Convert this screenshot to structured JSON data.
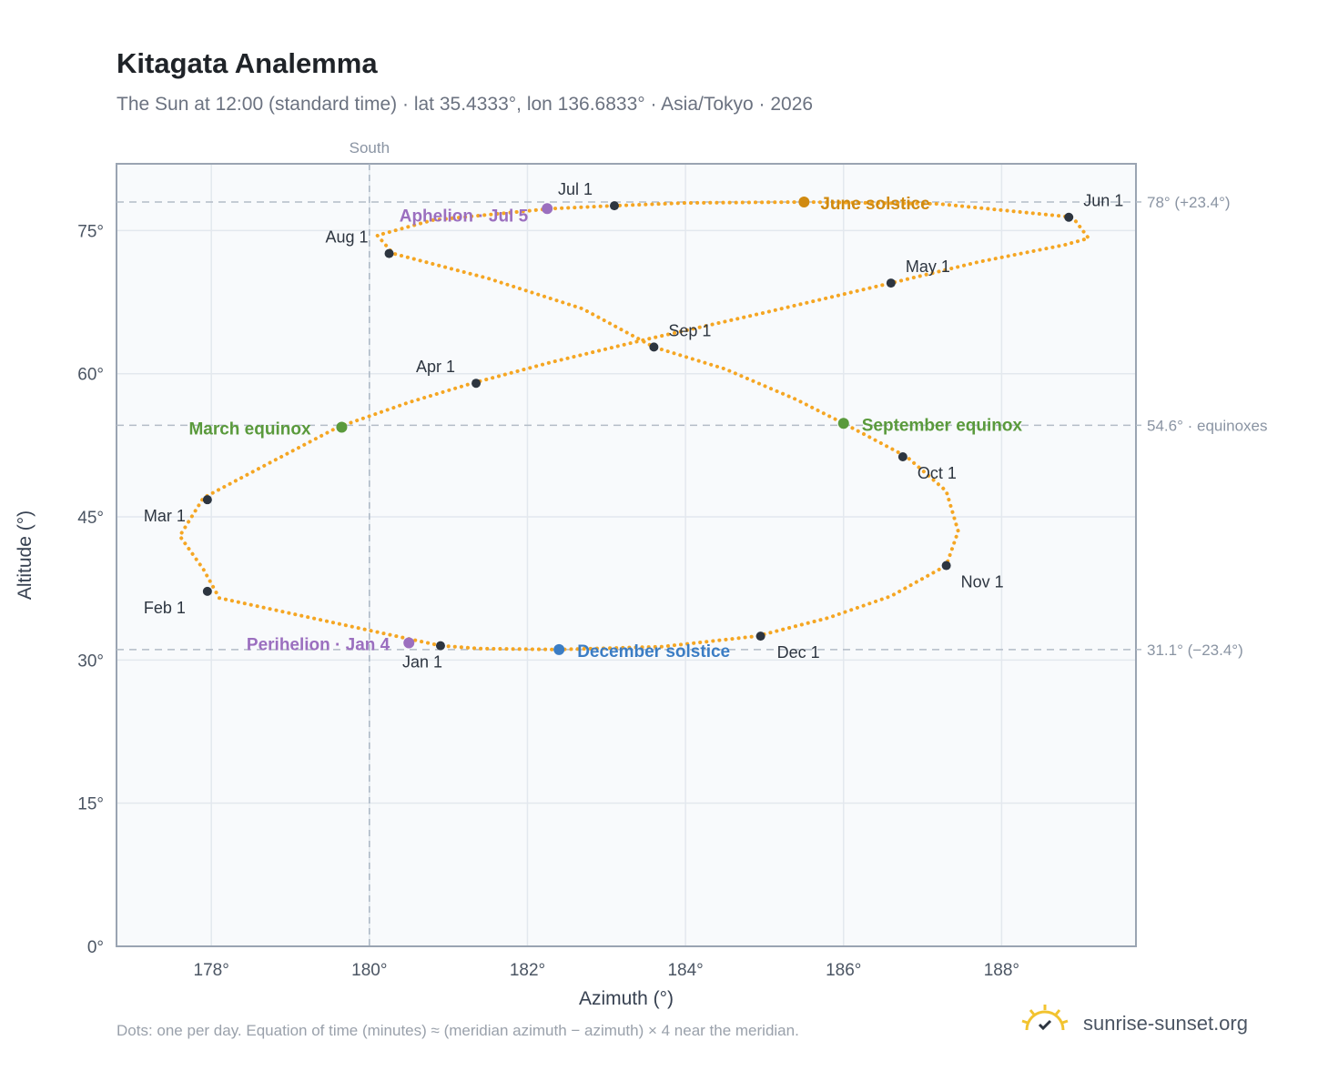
{
  "title": "Kitagata Analemma",
  "subtitle": "The Sun at 12:00 (standard time) · lat 35.4333°, lon 136.6833° · Asia/Tokyo · 2026",
  "footnote": "Dots: one per day. Equation of time (minutes) ≈ (meridian azimuth − azimuth) × 4 near the meridian.",
  "brand": {
    "name": "sunrise-sunset.org",
    "icon": "sun-logo-icon"
  },
  "colors": {
    "path": "#f5a623",
    "month": "#2d3540",
    "equinox": "#5a9a3c",
    "june_solstice": "#d08a10",
    "december_solstice": "#3b7dc4",
    "apsis": "#9b6fbf",
    "grid": "#e3e8ee",
    "plot_bg": "#f8fafc"
  },
  "chart_data": {
    "type": "scatter",
    "xlabel": "Azimuth (°)",
    "ylabel": "Altitude (°)",
    "xlim": [
      176.8,
      189.7
    ],
    "ylim": [
      0,
      82
    ],
    "x_ticks": [
      178,
      180,
      182,
      184,
      186,
      188
    ],
    "y_ticks": [
      0,
      15,
      30,
      45,
      60,
      75
    ],
    "x_tick_labels": [
      "178°",
      "180°",
      "182°",
      "184°",
      "186°",
      "188°"
    ],
    "y_tick_labels": [
      "0°",
      "15°",
      "30°",
      "45°",
      "60°",
      "75°"
    ],
    "grid": true,
    "south_line": {
      "x": 180,
      "label": "South"
    },
    "reference_lines": [
      {
        "y": 78.0,
        "label": "78° (+23.4°)"
      },
      {
        "y": 54.6,
        "label": "54.6° · equinoxes"
      },
      {
        "y": 31.1,
        "label": "31.1° (−23.4°)"
      }
    ],
    "series": [
      {
        "name": "daily",
        "points": [
          [
            180.9,
            31.5
          ],
          [
            178.1,
            36.5
          ],
          [
            177.9,
            39.5
          ],
          [
            177.6,
            43.0
          ],
          [
            177.9,
            47.0
          ],
          [
            178.7,
            50.5
          ],
          [
            179.6,
            54.4
          ],
          [
            180.5,
            57.0
          ],
          [
            181.3,
            59.0
          ],
          [
            182.3,
            61.2
          ],
          [
            183.5,
            63.6
          ],
          [
            185.0,
            66.4
          ],
          [
            186.6,
            69.5
          ],
          [
            187.7,
            71.7
          ],
          [
            188.8,
            73.5
          ],
          [
            189.1,
            74.2
          ],
          [
            188.9,
            76.4
          ],
          [
            187.2,
            77.8
          ],
          [
            185.5,
            78.0
          ],
          [
            184.0,
            77.9
          ],
          [
            183.1,
            77.6
          ],
          [
            182.3,
            77.3
          ],
          [
            180.8,
            76.1
          ],
          [
            180.1,
            74.5
          ],
          [
            180.3,
            72.6
          ],
          [
            181.5,
            70.0
          ],
          [
            182.7,
            66.8
          ],
          [
            183.6,
            62.8
          ],
          [
            184.5,
            60.5
          ],
          [
            185.4,
            57.3
          ],
          [
            186.0,
            54.8
          ],
          [
            186.8,
            51.3
          ],
          [
            187.3,
            47.7
          ],
          [
            187.45,
            43.5
          ],
          [
            187.3,
            39.9
          ],
          [
            186.6,
            36.7
          ],
          [
            185.8,
            34.4
          ],
          [
            184.9,
            32.5
          ],
          [
            183.7,
            31.4
          ],
          [
            182.4,
            31.1
          ],
          [
            181.4,
            31.2
          ],
          [
            180.9,
            31.5
          ]
        ]
      }
    ],
    "month_markers": [
      {
        "label": "Jan 1",
        "x": 180.9,
        "y": 31.5
      },
      {
        "label": "Feb 1",
        "x": 177.95,
        "y": 37.2
      },
      {
        "label": "Mar 1",
        "x": 177.95,
        "y": 46.8
      },
      {
        "label": "Apr 1",
        "x": 181.35,
        "y": 59.0
      },
      {
        "label": "May 1",
        "x": 186.6,
        "y": 69.5
      },
      {
        "label": "Jun 1",
        "x": 188.85,
        "y": 76.4
      },
      {
        "label": "Jul 1",
        "x": 183.1,
        "y": 77.6
      },
      {
        "label": "Aug 1",
        "x": 180.25,
        "y": 72.6
      },
      {
        "label": "Sep 1",
        "x": 183.6,
        "y": 62.8
      },
      {
        "label": "Oct 1",
        "x": 186.75,
        "y": 51.3
      },
      {
        "label": "Nov 1",
        "x": 187.3,
        "y": 39.9
      },
      {
        "label": "Dec 1",
        "x": 184.95,
        "y": 32.5
      }
    ],
    "events": [
      {
        "label": "March equinox",
        "x": 179.65,
        "y": 54.4,
        "color": "#5a9a3c"
      },
      {
        "label": "September equinox",
        "x": 186.0,
        "y": 54.8,
        "color": "#5a9a3c"
      },
      {
        "label": "June solstice",
        "x": 185.5,
        "y": 78.0,
        "color": "#d08a10"
      },
      {
        "label": "December solstice",
        "x": 182.4,
        "y": 31.1,
        "color": "#3b7dc4"
      },
      {
        "label": "Aphelion · Jul 5",
        "x": 182.25,
        "y": 77.3,
        "color": "#9b6fbf"
      },
      {
        "label": "Perihelion · Jan 4",
        "x": 180.5,
        "y": 31.8,
        "color": "#9b6fbf"
      }
    ]
  }
}
